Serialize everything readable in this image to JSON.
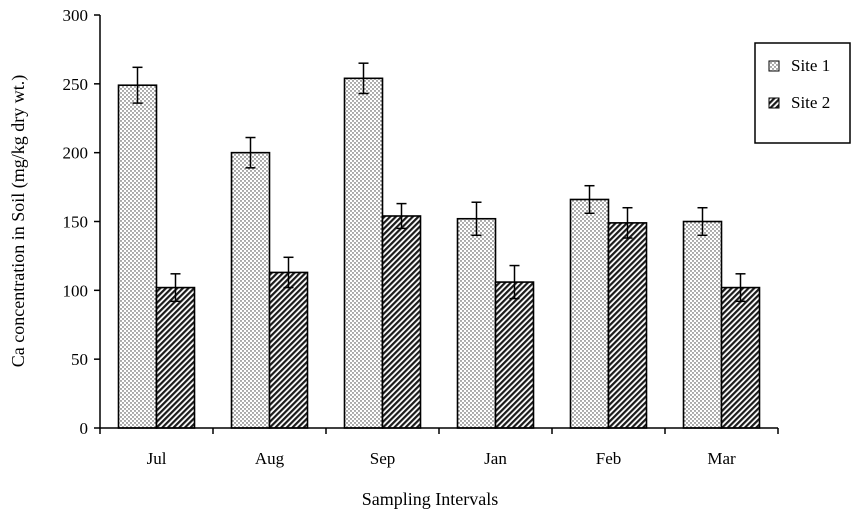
{
  "chart_data": {
    "type": "bar",
    "categories": [
      "Jul",
      "Aug",
      "Sep",
      "Jan",
      "Feb",
      "Mar"
    ],
    "series": [
      {
        "name": "Site 1",
        "values": [
          249,
          200,
          254,
          152,
          166,
          150
        ],
        "errors": [
          13,
          11,
          11,
          12,
          10,
          10
        ],
        "pattern": "dots"
      },
      {
        "name": "Site 2",
        "values": [
          102,
          113,
          154,
          106,
          149,
          102
        ],
        "errors": [
          10,
          11,
          9,
          12,
          11,
          10
        ],
        "pattern": "diagonal"
      }
    ],
    "xlabel": "Sampling Intervals",
    "ylabel": "Ca concentration in Soil (mg/kg dry wt.)",
    "ylim": [
      0,
      300
    ],
    "yticks": [
      0,
      50,
      100,
      150,
      200,
      250,
      300
    ],
    "grid": false,
    "legend_position": "top-right"
  }
}
